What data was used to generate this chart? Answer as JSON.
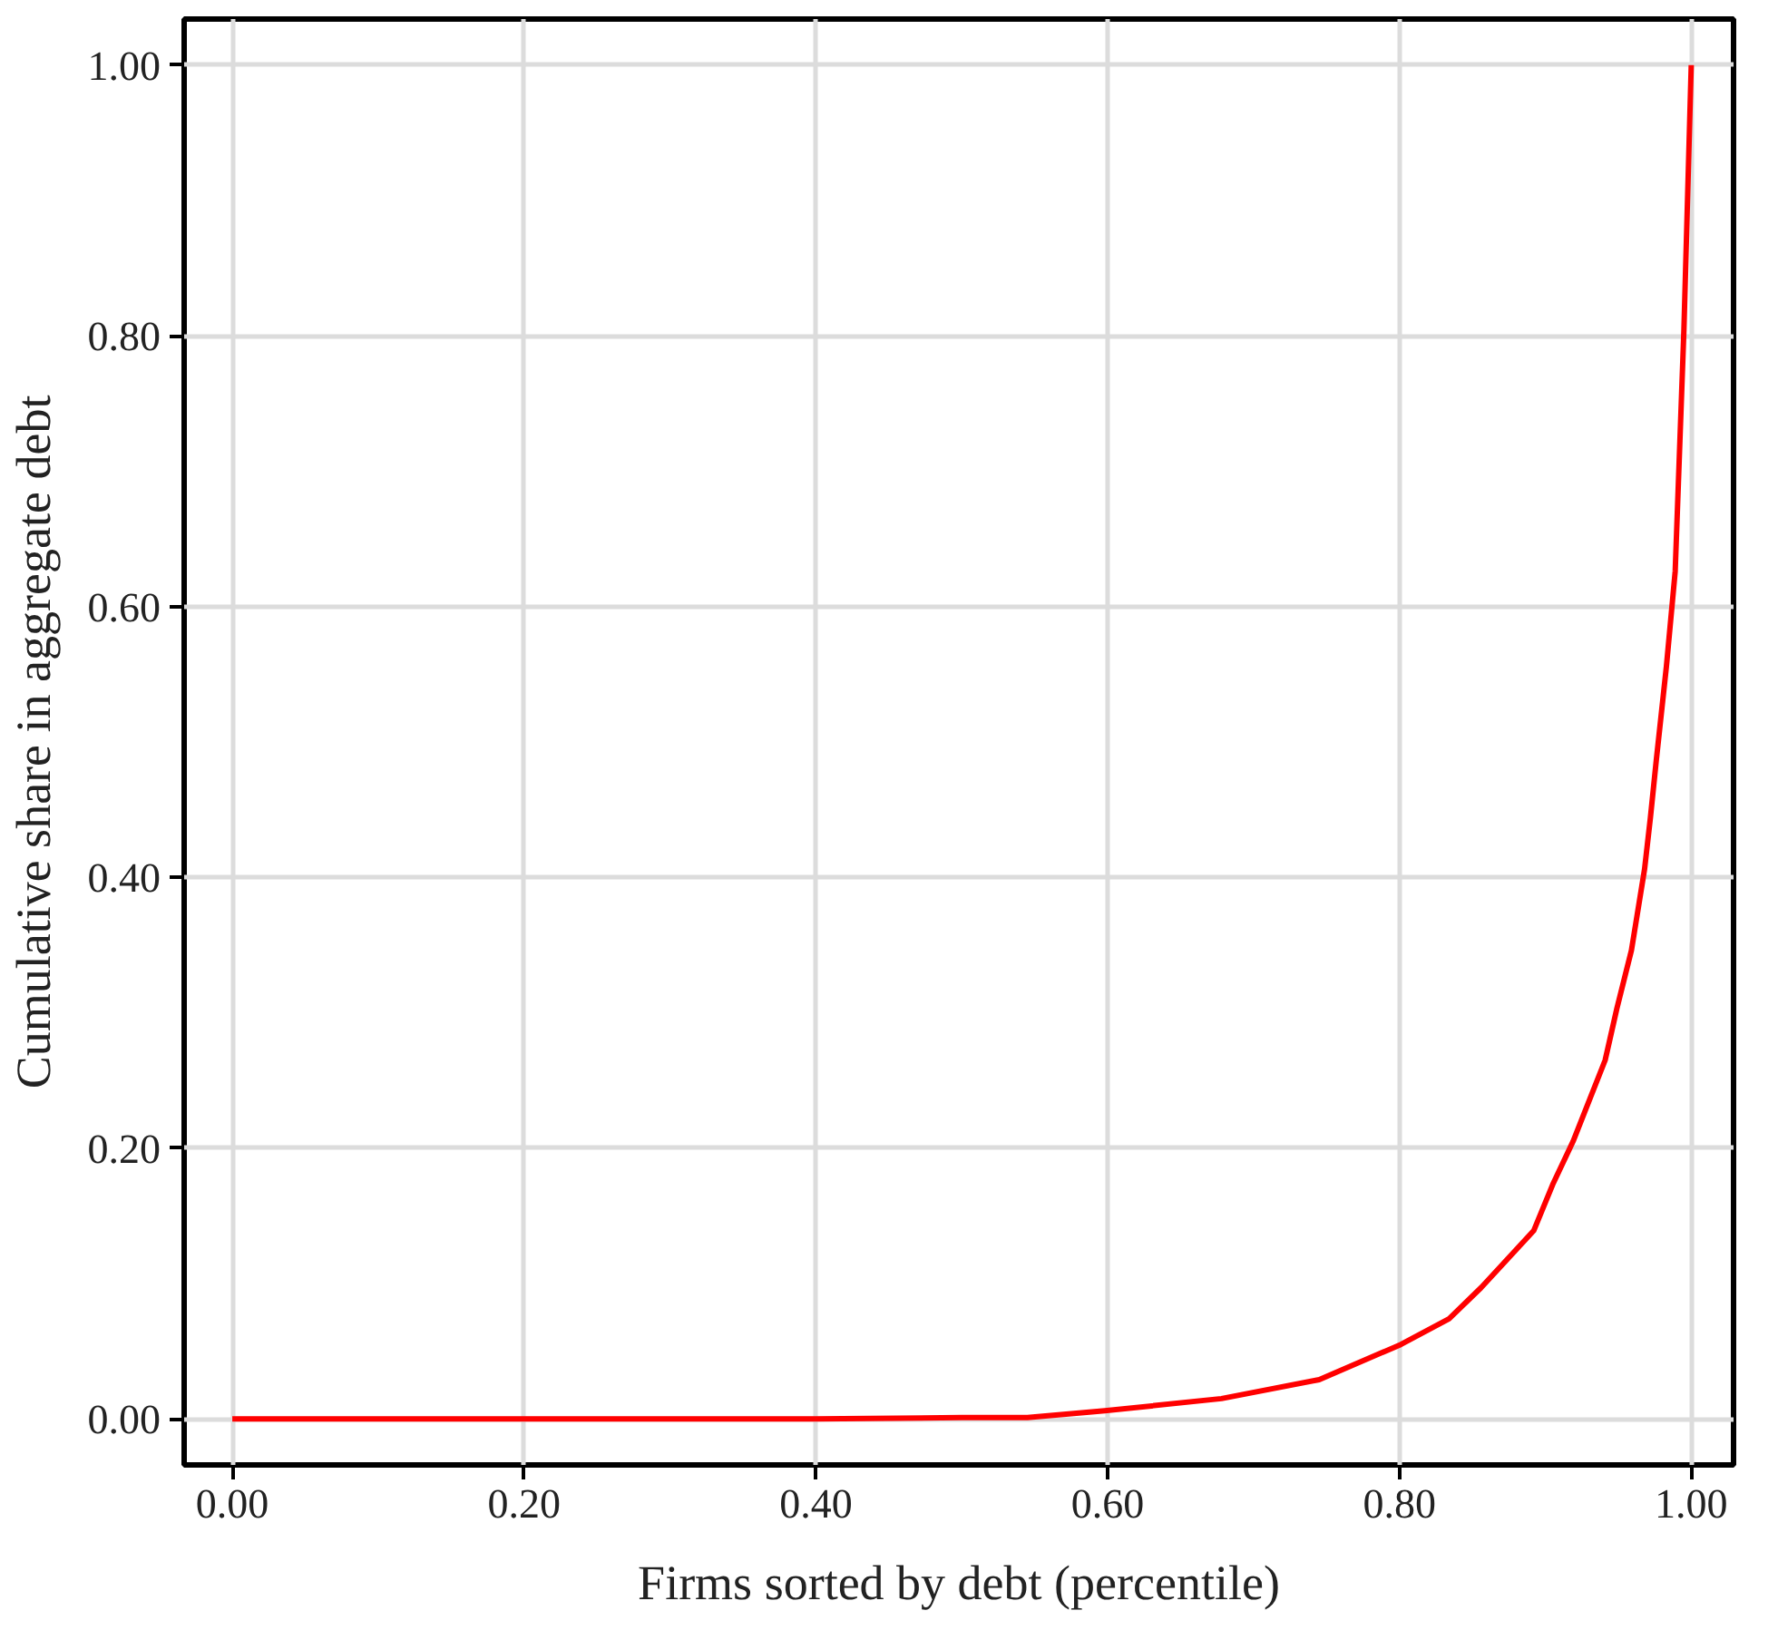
{
  "chart_data": {
    "type": "line",
    "xlabel": "Firms sorted by debt (percentile)",
    "ylabel": "Cumulative share in aggregate debt",
    "series": [
      {
        "color": "#ff0000",
        "x": [
          0.0,
          0.2,
          0.4,
          0.5,
          0.545,
          0.598,
          0.678,
          0.745,
          0.801,
          0.834,
          0.856,
          0.892,
          0.905,
          0.919,
          0.941,
          0.949,
          0.959,
          0.968,
          0.972,
          0.976,
          0.983,
          0.989,
          0.995,
          1.0
        ],
        "values": [
          0.0,
          0.0,
          0.0,
          0.001,
          0.001,
          0.006,
          0.015,
          0.029,
          0.055,
          0.074,
          0.097,
          0.139,
          0.173,
          0.205,
          0.265,
          0.303,
          0.346,
          0.406,
          0.444,
          0.486,
          0.556,
          0.626,
          0.805,
          1.0
        ]
      }
    ],
    "xlim": [
      -0.033,
      1.029
    ],
    "ylim": [
      -0.034,
      1.034
    ],
    "xticks": [
      {
        "value": 0,
        "label": "0.00"
      },
      {
        "value": 0.2,
        "label": "0.20"
      },
      {
        "value": 0.4,
        "label": "0.40"
      },
      {
        "value": 0.6,
        "label": "0.60"
      },
      {
        "value": 0.8,
        "label": "0.80"
      },
      {
        "value": 1,
        "label": "1.00"
      }
    ],
    "yticks": [
      {
        "value": 0,
        "label": "0.00"
      },
      {
        "value": 0.2,
        "label": "0.20"
      },
      {
        "value": 0.4,
        "label": "0.40"
      },
      {
        "value": 0.6,
        "label": "0.60"
      },
      {
        "value": 0.8,
        "label": "0.80"
      },
      {
        "value": 1,
        "label": "1.00"
      }
    ],
    "grid": true,
    "marker": "none",
    "line_style": "solid"
  }
}
